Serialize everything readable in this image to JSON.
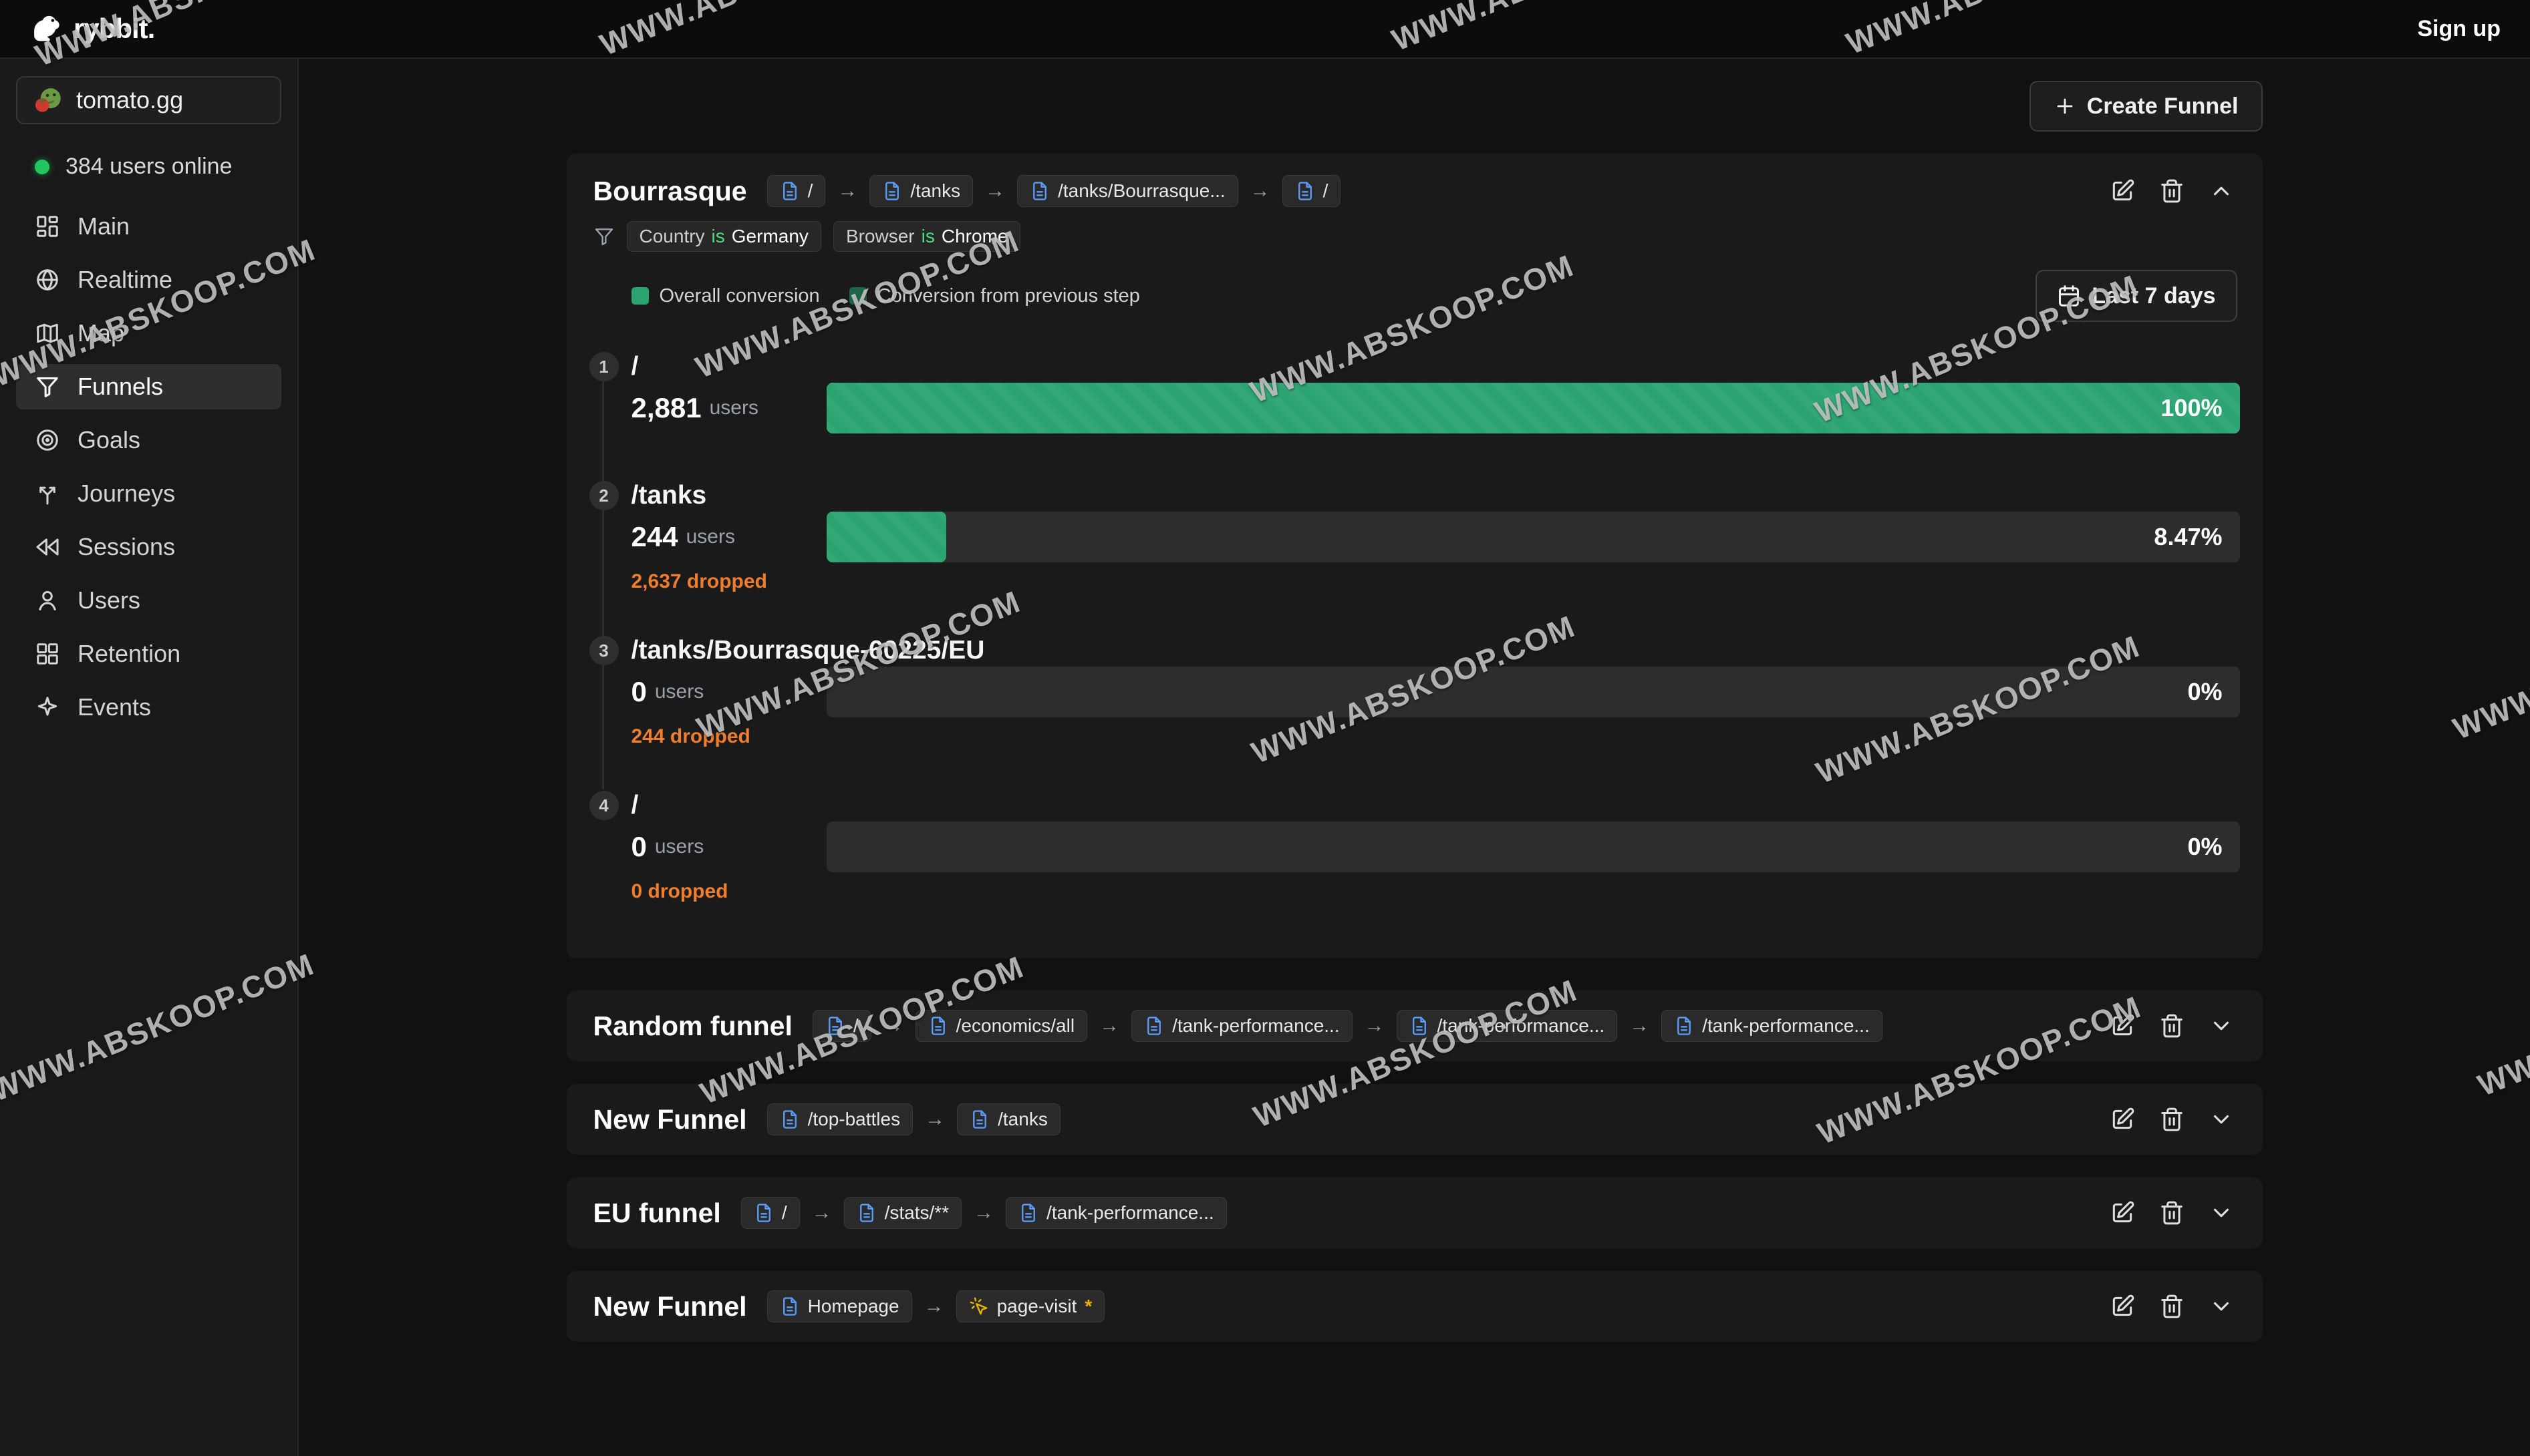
{
  "topbar": {
    "brand": "rybbit.",
    "signup": "Sign up"
  },
  "sidebar": {
    "site_name": "tomato.gg",
    "online_label": "384 users online",
    "items": [
      {
        "icon": "grid-main",
        "label": "Main",
        "active": false
      },
      {
        "icon": "globe",
        "label": "Realtime",
        "active": false
      },
      {
        "icon": "map",
        "label": "Map",
        "active": false
      },
      {
        "icon": "funnel",
        "label": "Funnels",
        "active": true
      },
      {
        "icon": "target",
        "label": "Goals",
        "active": false
      },
      {
        "icon": "split",
        "label": "Journeys",
        "active": false
      },
      {
        "icon": "rewind",
        "label": "Sessions",
        "active": false
      },
      {
        "icon": "user",
        "label": "Users",
        "active": false
      },
      {
        "icon": "grid",
        "label": "Retention",
        "active": false
      },
      {
        "icon": "sparkle",
        "label": "Events",
        "active": false
      }
    ]
  },
  "content": {
    "create_funnel_label": "Create Funnel",
    "main_funnel": {
      "name": "Bourrasque",
      "chips": [
        {
          "icon": "page",
          "label": "/"
        },
        {
          "icon": "page",
          "label": "/tanks"
        },
        {
          "icon": "page",
          "label": "/tanks/Bourrasque..."
        },
        {
          "icon": "page",
          "label": "/"
        }
      ],
      "filters": [
        {
          "field": "Country",
          "op": "is",
          "value": "Germany"
        },
        {
          "field": "Browser",
          "op": "is",
          "value": "Chrome"
        }
      ],
      "legend": [
        {
          "label": "Overall conversion",
          "color": "#2ba471"
        },
        {
          "label": "Conversion from previous step",
          "color": "#1e6647"
        }
      ],
      "date_range": "Last 7 days",
      "steps": [
        {
          "num": "1",
          "label": "/",
          "users": "2,881",
          "users_word": "users",
          "dropped": "",
          "percent": "100%",
          "fill": 100
        },
        {
          "num": "2",
          "label": "/tanks",
          "users": "244",
          "users_word": "users",
          "dropped": "2,637 dropped",
          "percent": "8.47%",
          "fill": 8.47
        },
        {
          "num": "3",
          "label": "/tanks/Bourrasque-60225/EU",
          "users": "0",
          "users_word": "users",
          "dropped": "244 dropped",
          "percent": "0%",
          "fill": 0
        },
        {
          "num": "4",
          "label": "/",
          "users": "0",
          "users_word": "users",
          "dropped": "0 dropped",
          "percent": "0%",
          "fill": 0
        }
      ]
    },
    "rows": [
      {
        "name": "Random funnel",
        "chips": [
          {
            "icon": "page",
            "label": "/"
          },
          {
            "icon": "page",
            "label": "/economics/all"
          },
          {
            "icon": "page",
            "label": "/tank-performance..."
          },
          {
            "icon": "page",
            "label": "/tank-performance..."
          },
          {
            "icon": "page",
            "label": "/tank-performance..."
          }
        ]
      },
      {
        "name": "New Funnel",
        "chips": [
          {
            "icon": "page",
            "label": "/top-battles"
          },
          {
            "icon": "page",
            "label": "/tanks"
          }
        ]
      },
      {
        "name": "EU funnel",
        "chips": [
          {
            "icon": "page",
            "label": "/"
          },
          {
            "icon": "page",
            "label": "/stats/**"
          },
          {
            "icon": "page",
            "label": "/tank-performance..."
          }
        ]
      },
      {
        "name": "New Funnel",
        "chips": [
          {
            "icon": "page",
            "label": "Homepage"
          },
          {
            "icon": "cursor",
            "label": "page-visit",
            "star": "*"
          }
        ]
      }
    ]
  },
  "colors": {
    "accent_green": "#2ba471",
    "dropped_orange": "#ee7d2d",
    "online_green": "#22c55e",
    "chip_icon_blue": "#5b9bf8",
    "event_yellow": "#eab308"
  },
  "watermark": {
    "text": "WWW.ABSKOOP.COM",
    "instances": [
      [
        295,
        -12
      ],
      [
        1140,
        -28
      ],
      [
        2325,
        -35
      ],
      [
        3005,
        -30
      ],
      [
        230,
        468
      ],
      [
        1283,
        455
      ],
      [
        2113,
        492
      ],
      [
        2958,
        522
      ],
      [
        1285,
        995
      ],
      [
        2115,
        1032
      ],
      [
        2960,
        1062
      ],
      [
        3913,
        996
      ],
      [
        228,
        1538
      ],
      [
        1290,
        1542
      ],
      [
        2118,
        1577
      ],
      [
        2962,
        1602
      ],
      [
        3950,
        1530
      ]
    ]
  }
}
